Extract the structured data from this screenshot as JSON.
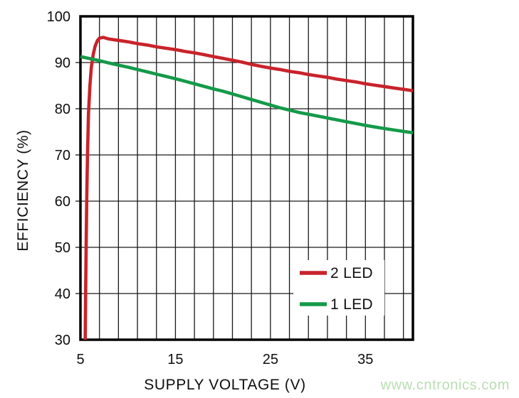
{
  "figure": {
    "watermark": {
      "text": "www.cntronics.com",
      "color": "#b9deb3"
    }
  },
  "chart_data": {
    "type": "line",
    "title": "",
    "xlabel": "SUPPLY VOLTAGE (V)",
    "ylabel": "EFFICIENCY (%)",
    "xlim": [
      5,
      40
    ],
    "ylim": [
      30,
      100
    ],
    "x_grid_step": 2,
    "y_grid_step": 10,
    "x_tick_labels": [
      5,
      15,
      25,
      35
    ],
    "y_tick_labels": [
      30,
      40,
      50,
      60,
      70,
      80,
      90,
      100
    ],
    "grid": true,
    "legend_position": "inside-lower-right",
    "series": [
      {
        "name": "2 LED",
        "color": "#c9232b",
        "points": [
          [
            5.5,
            30
          ],
          [
            5.55,
            40
          ],
          [
            5.6,
            50
          ],
          [
            5.66,
            60
          ],
          [
            5.74,
            70
          ],
          [
            5.85,
            79
          ],
          [
            6.0,
            85
          ],
          [
            6.15,
            89
          ],
          [
            6.35,
            91.8
          ],
          [
            6.55,
            93.6
          ],
          [
            6.8,
            94.8
          ],
          [
            7.0,
            95.3
          ],
          [
            7.4,
            95.45
          ],
          [
            8,
            95.1
          ],
          [
            9,
            94.8
          ],
          [
            10,
            94.5
          ],
          [
            11,
            94.1
          ],
          [
            12,
            93.8
          ],
          [
            13,
            93.4
          ],
          [
            14,
            93.1
          ],
          [
            15,
            92.8
          ],
          [
            16,
            92.4
          ],
          [
            17,
            92.1
          ],
          [
            18,
            91.7
          ],
          [
            19,
            91.3
          ],
          [
            20,
            90.9
          ],
          [
            21,
            90.5
          ],
          [
            22,
            90.1
          ],
          [
            23,
            89.6
          ],
          [
            24,
            89.2
          ],
          [
            25,
            88.8
          ],
          [
            26,
            88.5
          ],
          [
            27,
            88.1
          ],
          [
            28,
            87.8
          ],
          [
            29,
            87.4
          ],
          [
            30,
            87.1
          ],
          [
            31,
            86.8
          ],
          [
            32,
            86.4
          ],
          [
            33,
            86.1
          ],
          [
            34,
            85.8
          ],
          [
            35,
            85.4
          ],
          [
            36,
            85.1
          ],
          [
            37,
            84.8
          ],
          [
            38,
            84.5
          ],
          [
            39,
            84.2
          ],
          [
            40,
            83.9
          ]
        ]
      },
      {
        "name": "1 LED",
        "color": "#149a4a",
        "points": [
          [
            5,
            91.3
          ],
          [
            6,
            90.85
          ],
          [
            7,
            90.4
          ],
          [
            8,
            89.9
          ],
          [
            9,
            89.45
          ],
          [
            10,
            89.0
          ],
          [
            11,
            88.5
          ],
          [
            12,
            88.0
          ],
          [
            13,
            87.5
          ],
          [
            14,
            87.0
          ],
          [
            15,
            86.5
          ],
          [
            16,
            85.95
          ],
          [
            17,
            85.4
          ],
          [
            18,
            84.85
          ],
          [
            19,
            84.3
          ],
          [
            20,
            83.8
          ],
          [
            21,
            83.2
          ],
          [
            22,
            82.6
          ],
          [
            23,
            82.0
          ],
          [
            24,
            81.4
          ],
          [
            25,
            80.8
          ],
          [
            26,
            80.2
          ],
          [
            27,
            79.7
          ],
          [
            28,
            79.2
          ],
          [
            29,
            78.8
          ],
          [
            30,
            78.4
          ],
          [
            31,
            78.0
          ],
          [
            32,
            77.6
          ],
          [
            33,
            77.2
          ],
          [
            34,
            76.8
          ],
          [
            35,
            76.4
          ],
          [
            36,
            76.05
          ],
          [
            37,
            75.7
          ],
          [
            38,
            75.4
          ],
          [
            39,
            75.1
          ],
          [
            40,
            74.8
          ]
        ]
      }
    ]
  }
}
